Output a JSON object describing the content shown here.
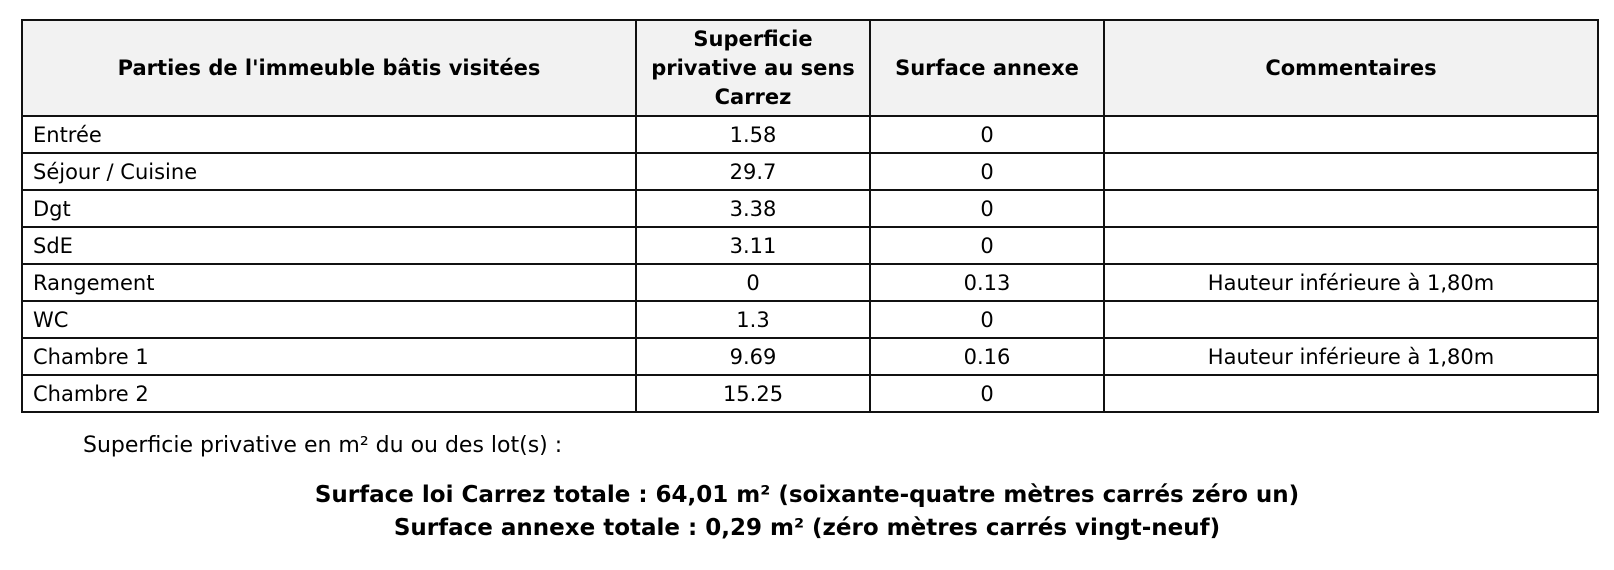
{
  "table": {
    "headers": [
      "Parties de l'immeuble bâtis visitées",
      "Superficie privative au sens Carrez",
      "Surface annexe",
      "Commentaires"
    ],
    "rows": [
      [
        "Entrée",
        "1.58",
        "0",
        ""
      ],
      [
        "Séjour / Cuisine",
        "29.7",
        "0",
        ""
      ],
      [
        "Dgt",
        "3.38",
        "0",
        ""
      ],
      [
        "SdE",
        "3.11",
        "0",
        ""
      ],
      [
        "Rangement",
        "0",
        "0.13",
        "Hauteur inférieure à 1,80m"
      ],
      [
        "WC",
        "1.3",
        "0",
        ""
      ],
      [
        "Chambre 1",
        "9.69",
        "0.16",
        "Hauteur inférieure à 1,80m"
      ],
      [
        "Chambre 2",
        "15.25",
        "0",
        ""
      ]
    ]
  },
  "summary": {
    "label": "Superficie privative en m² du ou des lot(s) :",
    "carrez_total": "Surface loi Carrez totale : 64,01 m² (soixante-quatre mètres carrés zéro un)",
    "annexe_total": "Surface annexe totale : 0,29 m² (zéro mètres carrés vingt-neuf)"
  }
}
